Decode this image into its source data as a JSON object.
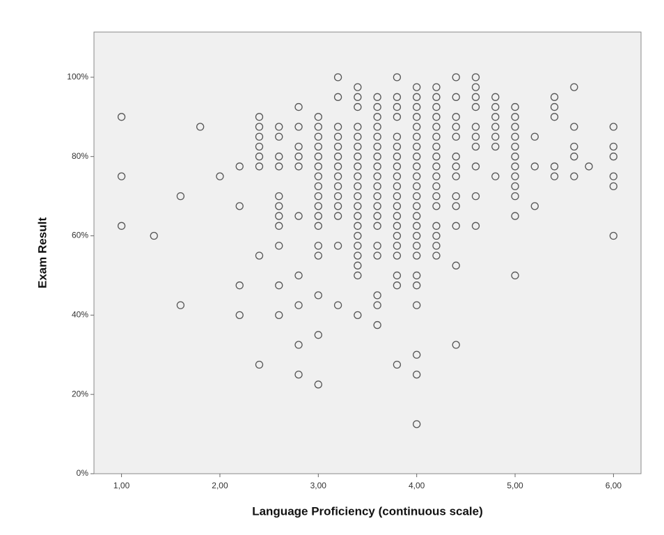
{
  "chart_data": {
    "type": "scatter",
    "x_label": "Language Proficiency (continuous scale)",
    "y_label": "Exam Result",
    "color": "#555555",
    "xlim": [
      0.72,
      6.28
    ],
    "ylim": [
      0,
      111.4
    ],
    "xticks": [
      {
        "value": 1,
        "label": "1,00"
      },
      {
        "value": 2,
        "label": "2,00"
      },
      {
        "value": 3,
        "label": "3,00"
      },
      {
        "value": 4,
        "label": "4,00"
      },
      {
        "value": 5,
        "label": "5,00"
      },
      {
        "value": 6,
        "label": "6,00"
      }
    ],
    "yticks": [
      {
        "value": 0,
        "label": "0%"
      },
      {
        "value": 20,
        "label": "20%"
      },
      {
        "value": 40,
        "label": "40%"
      },
      {
        "value": 60,
        "label": "60%"
      },
      {
        "value": 80,
        "label": "80%"
      },
      {
        "value": 100,
        "label": "100%"
      }
    ],
    "x": [
      1,
      1,
      1,
      1.33,
      1.6,
      1.6,
      1.8,
      2,
      2.2,
      2.2,
      2.2,
      2.2,
      2.4,
      2.4,
      2.4,
      2.4,
      2.4,
      2.4,
      2.4,
      2.4,
      2.6,
      2.6,
      2.6,
      2.6,
      2.6,
      2.6,
      2.6,
      2.6,
      2.6,
      2.6,
      2.6,
      2.8,
      2.8,
      2.8,
      2.8,
      2.8,
      2.8,
      2.8,
      2.8,
      2.8,
      2.8,
      3,
      3,
      3,
      3,
      3,
      3,
      3,
      3,
      3,
      3,
      3,
      3,
      3,
      3,
      3,
      3,
      3,
      3.2,
      3.2,
      3.2,
      3.2,
      3.2,
      3.2,
      3.2,
      3.2,
      3.2,
      3.2,
      3.2,
      3.2,
      3.2,
      3.2,
      3.4,
      3.4,
      3.4,
      3.4,
      3.4,
      3.4,
      3.4,
      3.4,
      3.4,
      3.4,
      3.4,
      3.4,
      3.4,
      3.4,
      3.4,
      3.4,
      3.4,
      3.4,
      3.4,
      3.4,
      3.6,
      3.6,
      3.6,
      3.6,
      3.6,
      3.6,
      3.6,
      3.6,
      3.6,
      3.6,
      3.6,
      3.6,
      3.6,
      3.6,
      3.6,
      3.6,
      3.6,
      3.6,
      3.6,
      3.8,
      3.8,
      3.8,
      3.8,
      3.8,
      3.8,
      3.8,
      3.8,
      3.8,
      3.8,
      3.8,
      3.8,
      3.8,
      3.8,
      3.8,
      3.8,
      3.8,
      3.8,
      3.8,
      3.8,
      4,
      4,
      4,
      4,
      4,
      4,
      4,
      4,
      4,
      4,
      4,
      4,
      4,
      4,
      4,
      4,
      4,
      4,
      4,
      4,
      4,
      4,
      4,
      4,
      4.2,
      4.2,
      4.2,
      4.2,
      4.2,
      4.2,
      4.2,
      4.2,
      4.2,
      4.2,
      4.2,
      4.2,
      4.2,
      4.2,
      4.2,
      4.2,
      4.2,
      4.4,
      4.4,
      4.4,
      4.4,
      4.4,
      4.4,
      4.4,
      4.4,
      4.4,
      4.4,
      4.4,
      4.4,
      4.4,
      4.6,
      4.6,
      4.6,
      4.6,
      4.6,
      4.6,
      4.6,
      4.6,
      4.6,
      4.6,
      4.8,
      4.8,
      4.8,
      4.8,
      4.8,
      4.8,
      4.8,
      5,
      5,
      5,
      5,
      5,
      5,
      5,
      5,
      5,
      5,
      5,
      5,
      5.2,
      5.2,
      5.2,
      5.4,
      5.4,
      5.4,
      5.4,
      5.4,
      5.6,
      5.6,
      5.6,
      5.6,
      5.6,
      5.75,
      6,
      6,
      6,
      6,
      6,
      6
    ],
    "values": [
      90,
      75,
      62.5,
      60,
      70,
      42.5,
      87.5,
      75,
      77.5,
      67.5,
      47.5,
      40,
      90,
      87.5,
      85,
      82.5,
      80,
      77.5,
      55,
      27.5,
      87.5,
      85,
      80,
      77.5,
      70,
      67.5,
      65,
      62.5,
      57.5,
      47.5,
      40,
      92.5,
      87.5,
      82.5,
      80,
      77.5,
      65,
      50,
      42.5,
      32.5,
      25,
      90,
      87.5,
      85,
      82.5,
      80,
      77.5,
      75,
      72.5,
      70,
      67.5,
      65,
      62.5,
      57.5,
      55,
      45,
      35,
      22.5,
      100,
      95,
      87.5,
      85,
      82.5,
      80,
      77.5,
      75,
      72.5,
      70,
      67.5,
      65,
      57.5,
      42.5,
      97.5,
      95,
      92.5,
      87.5,
      85,
      82.5,
      80,
      77.5,
      75,
      72.5,
      70,
      67.5,
      65,
      62.5,
      60,
      57.5,
      55,
      52.5,
      50,
      40,
      95,
      92.5,
      90,
      87.5,
      85,
      82.5,
      80,
      77.5,
      75,
      72.5,
      70,
      67.5,
      65,
      62.5,
      57.5,
      55,
      45,
      42.5,
      37.5,
      100,
      95,
      92.5,
      90,
      85,
      82.5,
      80,
      77.5,
      75,
      72.5,
      70,
      67.5,
      65,
      62.5,
      60,
      57.5,
      55,
      50,
      47.5,
      27.5,
      97.5,
      95,
      92.5,
      90,
      87.5,
      85,
      82.5,
      80,
      77.5,
      75,
      72.5,
      70,
      67.5,
      65,
      62.5,
      60,
      57.5,
      55,
      50,
      47.5,
      42.5,
      30,
      25,
      12.5,
      97.5,
      95,
      92.5,
      90,
      87.5,
      85,
      82.5,
      80,
      77.5,
      75,
      72.5,
      70,
      67.5,
      62.5,
      60,
      57.5,
      55,
      100,
      95,
      90,
      87.5,
      85,
      80,
      77.5,
      75,
      70,
      67.5,
      62.5,
      52.5,
      32.5,
      100,
      97.5,
      95,
      92.5,
      87.5,
      85,
      82.5,
      77.5,
      70,
      62.5,
      95,
      92.5,
      90,
      87.5,
      85,
      82.5,
      75,
      92.5,
      90,
      87.5,
      85,
      82.5,
      80,
      77.5,
      75,
      72.5,
      70,
      65,
      50,
      85,
      77.5,
      67.5,
      95,
      92.5,
      90,
      77.5,
      75,
      97.5,
      87.5,
      82.5,
      80,
      75,
      77.5,
      87.5,
      82.5,
      80,
      75,
      72.5,
      60
    ]
  }
}
